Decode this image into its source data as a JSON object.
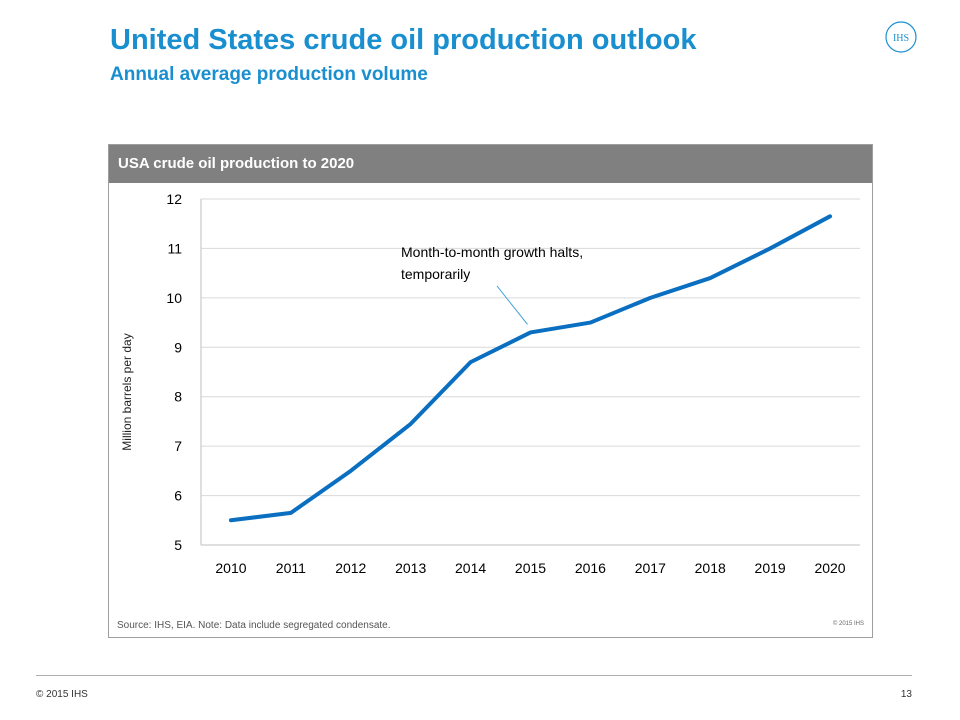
{
  "slide": {
    "title": "United States crude oil production outlook",
    "subtitle": "Annual average production volume",
    "logo_text": "IHS",
    "footer_copyright": "© 2015 IHS",
    "page_number": "13"
  },
  "panel": {
    "header": "USA crude oil production to 2020",
    "source": "Source: IHS, EIA. Note: Data include segregated condensate.",
    "copyright": "© 2015 IHS"
  },
  "colors": {
    "accent": "#1a8fd0",
    "line": "#0a6fc0",
    "panel_header": "#808080",
    "gridline": "#d9d9d9"
  },
  "chart_data": {
    "type": "line",
    "title": "USA crude oil production to 2020",
    "xlabel": "",
    "ylabel": "Million barrels per day",
    "categories": [
      "2010",
      "2011",
      "2012",
      "2013",
      "2014",
      "2015",
      "2016",
      "2017",
      "2018",
      "2019",
      "2020"
    ],
    "series": [
      {
        "values": [
          5.5,
          5.65,
          6.5,
          7.45,
          8.7,
          9.3,
          9.5,
          10.0,
          10.4,
          11.0,
          11.65
        ]
      }
    ],
    "ylim": [
      5,
      12
    ],
    "yticks": [
      5,
      6,
      7,
      8,
      9,
      10,
      11,
      12
    ],
    "grid": "horizontal",
    "annotations": [
      {
        "text_lines": [
          "Month-to-month growth halts,",
          "temporarily"
        ],
        "points_to": "2015"
      }
    ]
  }
}
